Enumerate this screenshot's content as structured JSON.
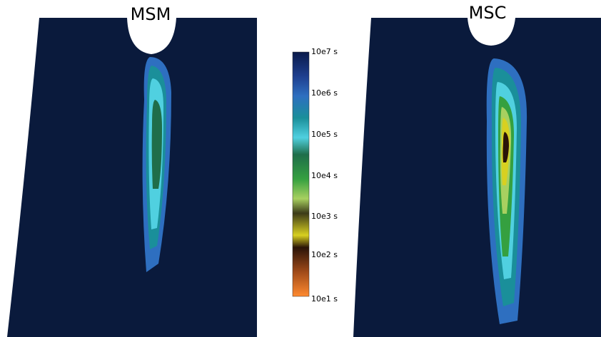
{
  "panels": [
    {
      "title": "MSM"
    },
    {
      "title": "MSC"
    }
  ],
  "colorbar": {
    "labels": [
      "10e7 s",
      "10e6 s",
      "10e5 s",
      "10e4 s",
      "10e3 s",
      "10e2 s",
      "10e1 s"
    ]
  }
}
